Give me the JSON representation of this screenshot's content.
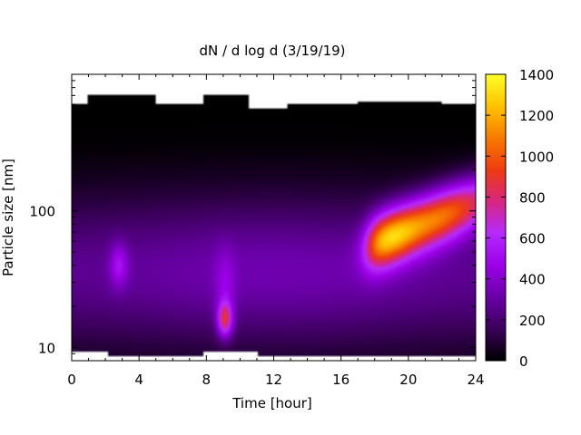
{
  "chart_data": {
    "type": "heatmap",
    "title": "dN / d log d (3/19/19)",
    "xlabel": "Time [hour]",
    "ylabel": "Particle size [nm]",
    "xlim": [
      0,
      24
    ],
    "ylim_nm": [
      8,
      1000
    ],
    "y_scale": "log",
    "x_ticks": [
      0,
      4,
      8,
      12,
      16,
      20,
      24
    ],
    "x_tick_labels": [
      "0",
      "4",
      "8",
      "12",
      "16",
      "20",
      "24"
    ],
    "y_ticks": [
      10,
      100
    ],
    "y_tick_labels": [
      "10",
      "100"
    ],
    "colorbar": {
      "range": [
        0,
        1400
      ],
      "ticks": [
        0,
        200,
        400,
        600,
        800,
        1000,
        1200,
        1400
      ],
      "tick_labels": [
        "0",
        "200",
        "400",
        "600",
        "800",
        "1000",
        "1200",
        "1400"
      ],
      "palette": [
        "#000000",
        "#3a0059",
        "#6a00a8",
        "#9b00e6",
        "#b52aff",
        "#d6277f",
        "#ee3b12",
        "#f77b00",
        "#ffc200",
        "#ffff2a"
      ]
    },
    "features": [
      {
        "time_h": 2.8,
        "size_nm": 40,
        "value": 480
      },
      {
        "time_h": 9.0,
        "size_nm": 16,
        "value": 760
      },
      {
        "time_h": 19.5,
        "size_nm": 60,
        "value": 1300
      }
    ]
  }
}
